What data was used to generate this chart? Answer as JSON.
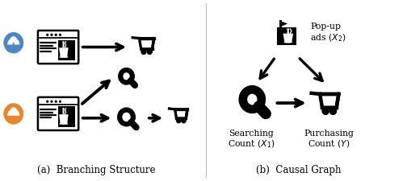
{
  "fig_width": 5.04,
  "fig_height": 2.26,
  "dpi": 100,
  "bg_color": "#ffffff",
  "label_a": "(a)  Branching Structure",
  "label_b": "(b)  Causal Graph",
  "node_x2_label": "Pop-up\nads $(X_2)$",
  "node_x1_label": "Searching\nCount $(X_1)$",
  "node_y_label": "Purchasing\nCount $(Y)$",
  "user1_color": "#4a86c8",
  "user2_color": "#e8872a",
  "black": "#000000",
  "white": "#ffffff"
}
